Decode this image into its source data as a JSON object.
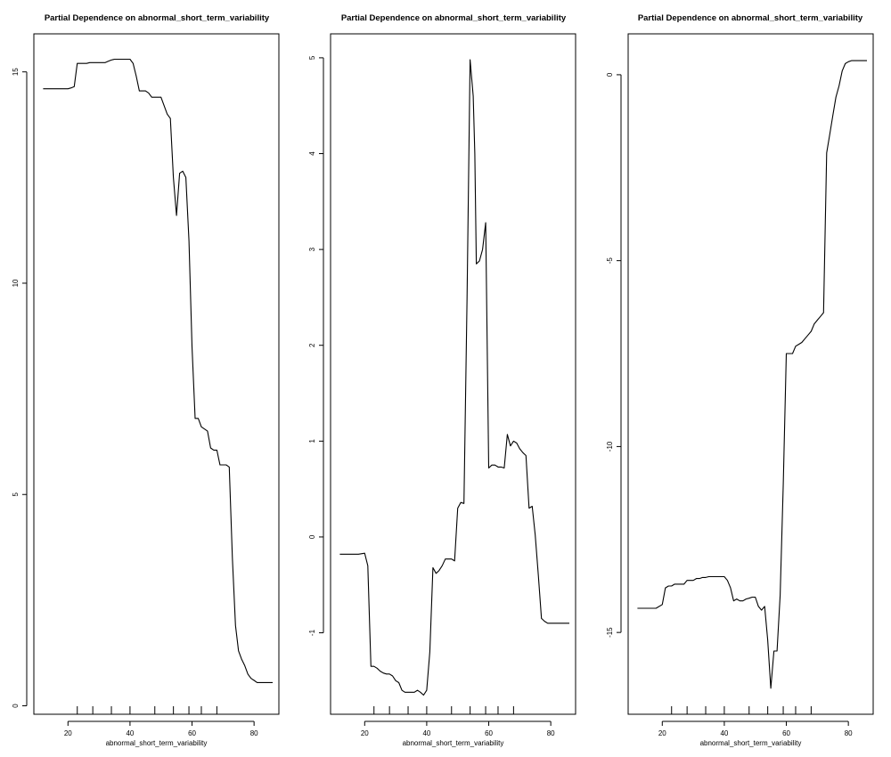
{
  "chart_data": [
    {
      "type": "line",
      "title": "Partial Dependence on abnormal_short_term_variability",
      "xlabel": "abnormal_short_term_variability",
      "ylabel": "",
      "xlim": [
        9,
        88
      ],
      "ylim": [
        -0.2,
        15.9
      ],
      "xticks": [
        20,
        40,
        60,
        80
      ],
      "yticks": [
        0,
        5,
        10,
        15
      ],
      "rug": [
        23,
        28,
        34,
        40,
        48,
        54,
        59,
        63,
        68
      ],
      "x": [
        12,
        14,
        16,
        18,
        19,
        20,
        21,
        22,
        23,
        24,
        25,
        26,
        27,
        28,
        29,
        30,
        31,
        32,
        33,
        34,
        35,
        36,
        37,
        38,
        39,
        40,
        41,
        42,
        43,
        44,
        45,
        46,
        47,
        48,
        49,
        50,
        51,
        52,
        53,
        54,
        55,
        56,
        57,
        58,
        59,
        60,
        61,
        62,
        63,
        64,
        65,
        66,
        67,
        68,
        69,
        70,
        71,
        72,
        73,
        74,
        75,
        76,
        77,
        78,
        79,
        80,
        81,
        82,
        83,
        84,
        85,
        86
      ],
      "y": [
        14.6,
        14.6,
        14.6,
        14.6,
        14.6,
        14.6,
        14.62,
        14.65,
        15.2,
        15.2,
        15.2,
        15.2,
        15.22,
        15.22,
        15.22,
        15.22,
        15.22,
        15.22,
        15.25,
        15.28,
        15.3,
        15.3,
        15.3,
        15.3,
        15.3,
        15.3,
        15.2,
        14.9,
        14.55,
        14.55,
        14.55,
        14.5,
        14.4,
        14.4,
        14.4,
        14.4,
        14.2,
        14.0,
        13.9,
        12.5,
        11.6,
        12.6,
        12.65,
        12.5,
        11.0,
        8.5,
        6.8,
        6.8,
        6.6,
        6.55,
        6.5,
        6.1,
        6.05,
        6.05,
        5.7,
        5.7,
        5.7,
        5.65,
        3.5,
        1.9,
        1.3,
        1.1,
        0.95,
        0.75,
        0.65,
        0.6,
        0.55,
        0.55,
        0.55,
        0.55,
        0.55,
        0.55
      ]
    },
    {
      "type": "line",
      "title": "Partial Dependence on abnormal_short_term_variability",
      "xlabel": "abnormal_short_term_variability",
      "ylabel": "",
      "xlim": [
        9,
        88
      ],
      "ylim": [
        -1.85,
        5.25
      ],
      "xticks": [
        20,
        40,
        60,
        80
      ],
      "yticks": [
        -1,
        0,
        1,
        2,
        3,
        4,
        5
      ],
      "rug": [
        23,
        28,
        34,
        40,
        48,
        54,
        59,
        63,
        68
      ],
      "x": [
        12,
        14,
        16,
        18,
        20,
        21,
        22,
        23,
        24,
        25,
        26,
        27,
        28,
        29,
        30,
        31,
        32,
        33,
        34,
        35,
        36,
        37,
        38,
        39,
        40,
        41,
        42,
        43,
        44,
        45,
        46,
        47,
        48,
        49,
        50,
        51,
        52,
        53,
        54,
        55,
        55.5,
        56,
        57,
        58,
        59,
        60,
        61,
        62,
        63,
        64,
        65,
        66,
        67,
        68,
        69,
        70,
        71,
        72,
        73,
        74,
        75,
        76,
        77,
        78,
        79,
        80,
        81,
        82,
        83,
        84,
        85,
        86
      ],
      "y": [
        -0.18,
        -0.18,
        -0.18,
        -0.18,
        -0.17,
        -0.3,
        -1.35,
        -1.35,
        -1.37,
        -1.4,
        -1.42,
        -1.43,
        -1.43,
        -1.45,
        -1.5,
        -1.52,
        -1.6,
        -1.62,
        -1.62,
        -1.62,
        -1.62,
        -1.6,
        -1.62,
        -1.65,
        -1.6,
        -1.2,
        -0.32,
        -0.38,
        -0.35,
        -0.3,
        -0.23,
        -0.23,
        -0.23,
        -0.25,
        0.3,
        0.36,
        0.35,
        2.5,
        4.98,
        4.6,
        4.0,
        2.85,
        2.88,
        3.0,
        3.28,
        0.72,
        0.75,
        0.75,
        0.73,
        0.73,
        0.72,
        1.07,
        0.95,
        1.0,
        0.98,
        0.92,
        0.88,
        0.85,
        0.3,
        0.32,
        0.02,
        -0.4,
        -0.85,
        -0.88,
        -0.9,
        -0.9,
        -0.9,
        -0.9,
        -0.9,
        -0.9,
        -0.9,
        -0.9
      ]
    },
    {
      "type": "line",
      "title": "Partial Dependence on abnormal_short_term_variability",
      "xlabel": "abnormal_short_term_variability",
      "ylabel": "",
      "xlim": [
        9,
        88
      ],
      "ylim": [
        -17.2,
        1.1
      ],
      "xticks": [
        20,
        40,
        60,
        80
      ],
      "yticks": [
        -15,
        -10,
        -5,
        0
      ],
      "rug": [
        23,
        28,
        34,
        40,
        48,
        54,
        59,
        63,
        68
      ],
      "x": [
        12,
        14,
        16,
        18,
        20,
        21,
        22,
        23,
        24,
        25,
        26,
        27,
        28,
        29,
        30,
        31,
        32,
        33,
        34,
        35,
        36,
        37,
        38,
        39,
        40,
        41,
        42,
        43,
        44,
        45,
        46,
        47,
        48,
        49,
        50,
        51,
        52,
        53,
        54,
        55,
        56,
        57,
        58,
        59,
        60,
        61,
        62,
        63,
        64,
        65,
        66,
        67,
        68,
        69,
        70,
        71,
        72,
        73,
        74,
        75,
        76,
        77,
        78,
        79,
        80,
        81,
        82,
        83,
        84,
        85,
        86
      ],
      "y": [
        -14.35,
        -14.35,
        -14.35,
        -14.35,
        -14.25,
        -13.8,
        -13.75,
        -13.75,
        -13.7,
        -13.7,
        -13.7,
        -13.7,
        -13.6,
        -13.6,
        -13.6,
        -13.55,
        -13.55,
        -13.52,
        -13.52,
        -13.5,
        -13.5,
        -13.5,
        -13.5,
        -13.5,
        -13.5,
        -13.6,
        -13.8,
        -14.15,
        -14.1,
        -14.15,
        -14.15,
        -14.1,
        -14.08,
        -14.05,
        -14.05,
        -14.3,
        -14.4,
        -14.3,
        -15.2,
        -16.5,
        -15.5,
        -15.5,
        -14.0,
        -11.0,
        -7.5,
        -7.5,
        -7.5,
        -7.3,
        -7.25,
        -7.2,
        -7.1,
        -7.0,
        -6.9,
        -6.7,
        -6.6,
        -6.5,
        -6.4,
        -2.1,
        -1.6,
        -1.1,
        -0.6,
        -0.3,
        0.1,
        0.3,
        0.35,
        0.38,
        0.38,
        0.38,
        0.38,
        0.38,
        0.38
      ]
    }
  ]
}
